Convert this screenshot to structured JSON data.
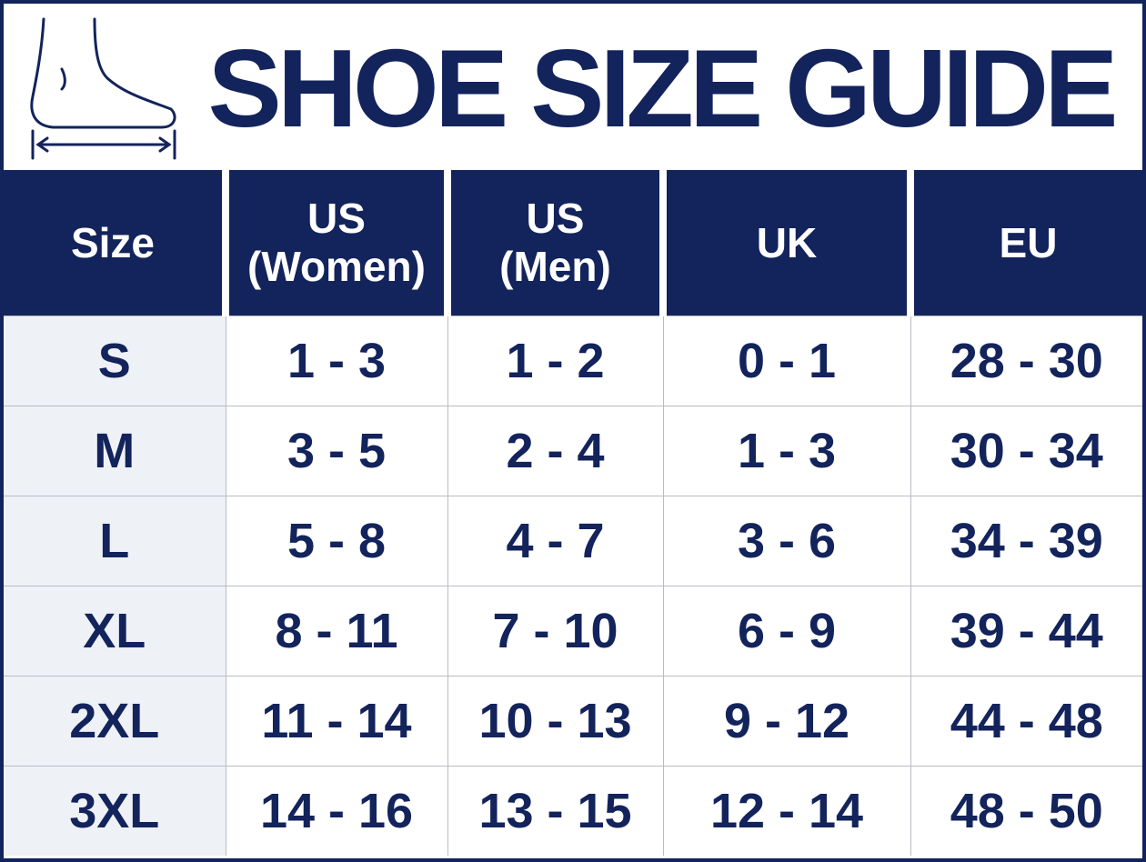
{
  "header": {
    "title": "SHOE SIZE GUIDE"
  },
  "table": {
    "columns": [
      "Size",
      "US\n(Women)",
      "US\n(Men)",
      "UK",
      "EU"
    ],
    "rows": [
      [
        "S",
        "1 - 3",
        "1 - 2",
        "0 - 1",
        "28 - 30"
      ],
      [
        "M",
        "3 - 5",
        "2 - 4",
        "1 - 3",
        "30 - 34"
      ],
      [
        "L",
        "5 - 8",
        "4 - 7",
        "3 - 6",
        "34 - 39"
      ],
      [
        "XL",
        "8 - 11",
        "7 - 10",
        "6 - 9",
        "39 - 44"
      ],
      [
        "2XL",
        "11 - 14",
        "10 - 13",
        "9 - 12",
        "44 - 48"
      ],
      [
        "3XL",
        "14 - 16",
        "13 - 15",
        "12 - 14",
        "48 - 50"
      ]
    ]
  }
}
